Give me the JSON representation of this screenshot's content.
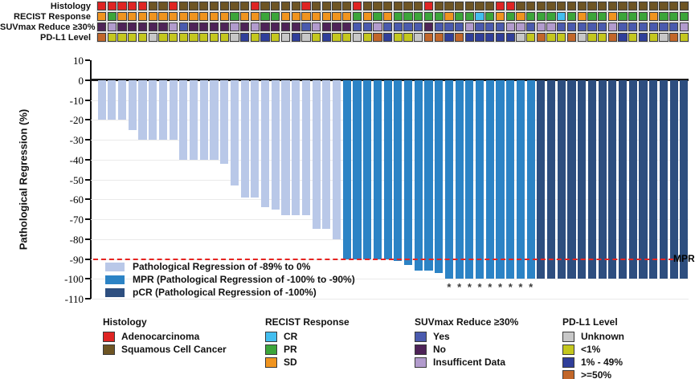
{
  "annotation_tracks": {
    "labels": [
      "Histology",
      "RECIST Response",
      "SUVmax Reduce ≥30%",
      "PD-L1 Level"
    ],
    "histology": [
      "A",
      "A",
      "A",
      "A",
      "A",
      "S",
      "S",
      "A",
      "S",
      "S",
      "S",
      "S",
      "S",
      "S",
      "S",
      "A",
      "S",
      "S",
      "S",
      "S",
      "A",
      "S",
      "S",
      "S",
      "S",
      "A",
      "S",
      "S",
      "S",
      "S",
      "S",
      "S",
      "A",
      "S",
      "S",
      "S",
      "S",
      "S",
      "S",
      "A",
      "A",
      "S",
      "S",
      "S",
      "S",
      "S",
      "S",
      "S",
      "S",
      "S",
      "S",
      "S",
      "S",
      "S",
      "S",
      "S",
      "S",
      "S"
    ],
    "recist": [
      "SD",
      "PR",
      "SD",
      "SD",
      "SD",
      "SD",
      "SD",
      "SD",
      "SD",
      "SD",
      "SD",
      "SD",
      "SD",
      "PR",
      "SD",
      "SD",
      "PR",
      "PR",
      "SD",
      "SD",
      "SD",
      "SD",
      "SD",
      "SD",
      "SD",
      "PR",
      "SD",
      "PR",
      "SD",
      "PR",
      "PR",
      "PR",
      "PR",
      "PR",
      "SD",
      "PR",
      "PR",
      "CR",
      "PR",
      "SD",
      "PR",
      "SD",
      "PR",
      "PR",
      "PR",
      "CR",
      "PR",
      "SD",
      "PR",
      "PR",
      "SD",
      "PR",
      "PR",
      "PR",
      "SD",
      "PR",
      "PR",
      "PR"
    ],
    "suvmax": [
      "N",
      "I",
      "N",
      "N",
      "N",
      "N",
      "N",
      "I",
      "Y",
      "N",
      "N",
      "N",
      "N",
      "I",
      "N",
      "I",
      "N",
      "N",
      "N",
      "N",
      "Y",
      "I",
      "N",
      "N",
      "N",
      "Y",
      "Y",
      "I",
      "Y",
      "Y",
      "Y",
      "Y",
      "N",
      "Y",
      "Y",
      "Y",
      "I",
      "Y",
      "Y",
      "Y",
      "I",
      "I",
      "Y",
      "I",
      "I",
      "Y",
      "Y",
      "Y",
      "Y",
      "Y",
      "I",
      "Y",
      "Y",
      "Y",
      "Y",
      "Y",
      "Y",
      "I"
    ],
    "pdl1": [
      "O",
      "Y",
      "Y",
      "Y",
      "Y",
      "U",
      "Y",
      "Y",
      "Y",
      "Y",
      "Y",
      "Y",
      "Y",
      "U",
      "B",
      "Y",
      "B",
      "Y",
      "U",
      "B",
      "U",
      "Y",
      "B",
      "Y",
      "Y",
      "U",
      "Y",
      "O",
      "B",
      "Y",
      "Y",
      "U",
      "O",
      "O",
      "B",
      "O",
      "B",
      "B",
      "B",
      "B",
      "B",
      "U",
      "Y",
      "O",
      "Y",
      "Y",
      "O",
      "U",
      "Y",
      "Y",
      "O",
      "B",
      "Y",
      "B",
      "Y",
      "U",
      "O",
      "Y"
    ],
    "palette": {
      "histology": {
        "A": "#df2423",
        "S": "#6e5524"
      },
      "recist": {
        "CR": "#43beef",
        "PR": "#3ca53a",
        "SD": "#f0941f"
      },
      "suvmax": {
        "Y": "#4a5aae",
        "N": "#4e2358",
        "I": "#b29bcd"
      },
      "pdl1": {
        "U": "#c7c7c7",
        "Y": "#c4c71e",
        "B": "#303f9a",
        "O": "#c2672a"
      }
    }
  },
  "chart_data": {
    "type": "bar",
    "ylabel": "Pathological Regression (%)",
    "ylim": [
      -110,
      10
    ],
    "yticks": [
      10,
      0,
      -10,
      -20,
      -30,
      -40,
      -50,
      -60,
      -70,
      -80,
      -90,
      -100,
      -110
    ],
    "grid": "horizontal",
    "n_patients": 58,
    "values": [
      -20,
      -20,
      -20,
      -25,
      -30,
      -30,
      -30,
      -30,
      -40,
      -40,
      -40,
      -40,
      -42,
      -53,
      -59,
      -59,
      -64,
      -65,
      -68,
      -68,
      -68,
      -75,
      -75,
      -80,
      -90,
      -90,
      -90,
      -90,
      -90,
      -91,
      -93,
      -96,
      -96,
      -97,
      -100,
      -100,
      -100,
      -100,
      -100,
      -100,
      -100,
      -100,
      -100,
      -100,
      -100,
      -100,
      -100,
      -100,
      -100,
      -100,
      -100,
      -100,
      -100,
      -100,
      -100,
      -100,
      -100,
      -100
    ],
    "categories": [
      "reg",
      "reg",
      "reg",
      "reg",
      "reg",
      "reg",
      "reg",
      "reg",
      "reg",
      "reg",
      "reg",
      "reg",
      "reg",
      "reg",
      "reg",
      "reg",
      "reg",
      "reg",
      "reg",
      "reg",
      "reg",
      "reg",
      "reg",
      "reg",
      "mpr",
      "mpr",
      "mpr",
      "mpr",
      "mpr",
      "mpr",
      "mpr",
      "mpr",
      "mpr",
      "mpr",
      "mpr",
      "mpr",
      "mpr",
      "mpr",
      "mpr",
      "mpr",
      "mpr",
      "mpr",
      "mpr",
      "pcr",
      "pcr",
      "pcr",
      "pcr",
      "pcr",
      "pcr",
      "pcr",
      "pcr",
      "pcr",
      "pcr",
      "pcr",
      "pcr",
      "pcr",
      "pcr",
      "pcr"
    ],
    "bar_colors": {
      "reg": "#b9c8e8",
      "mpr": "#2c83c5",
      "pcr": "#2d4e7f"
    },
    "asterisk_bars": [
      35,
      36,
      37,
      38,
      39,
      40,
      41,
      42,
      43
    ],
    "asterisk_symbol": "*",
    "reference_line": {
      "y": -90,
      "label": "MPR",
      "color": "#e62320",
      "style": "dashed"
    },
    "legend": [
      {
        "label": "Pathological Regression of -89% to 0%",
        "color": "#b9c8e8"
      },
      {
        "label": "MPR (Pathological Regression of -100% to -90%)",
        "color": "#2c83c5"
      },
      {
        "label": "pCR (Pathological Regression of -100%)",
        "color": "#2d4e7f"
      }
    ]
  },
  "bottom_legend": [
    {
      "title": "Histology",
      "items": [
        {
          "label": "Adenocarcinoma",
          "color": "#df2423"
        },
        {
          "label": "Squamous Cell Cancer",
          "color": "#6e5524"
        }
      ]
    },
    {
      "title": "RECIST Response",
      "items": [
        {
          "label": "CR",
          "color": "#43beef"
        },
        {
          "label": "PR",
          "color": "#3ca53a"
        },
        {
          "label": "SD",
          "color": "#f0941f"
        }
      ]
    },
    {
      "title": "SUVmax Reduce ≥30%",
      "items": [
        {
          "label": "Yes",
          "color": "#4a5aae"
        },
        {
          "label": "No",
          "color": "#4e2358"
        },
        {
          "label": "Insufficent Data",
          "color": "#b29bcd"
        }
      ]
    },
    {
      "title": "PD-L1 Level",
      "items": [
        {
          "label": "Unknown",
          "color": "#c7c7c7"
        },
        {
          "label": "<1%",
          "color": "#c4c71e"
        },
        {
          "label": "1% - 49%",
          "color": "#303f9a"
        },
        {
          "label": ">=50%",
          "color": "#c2672a"
        }
      ]
    }
  ]
}
